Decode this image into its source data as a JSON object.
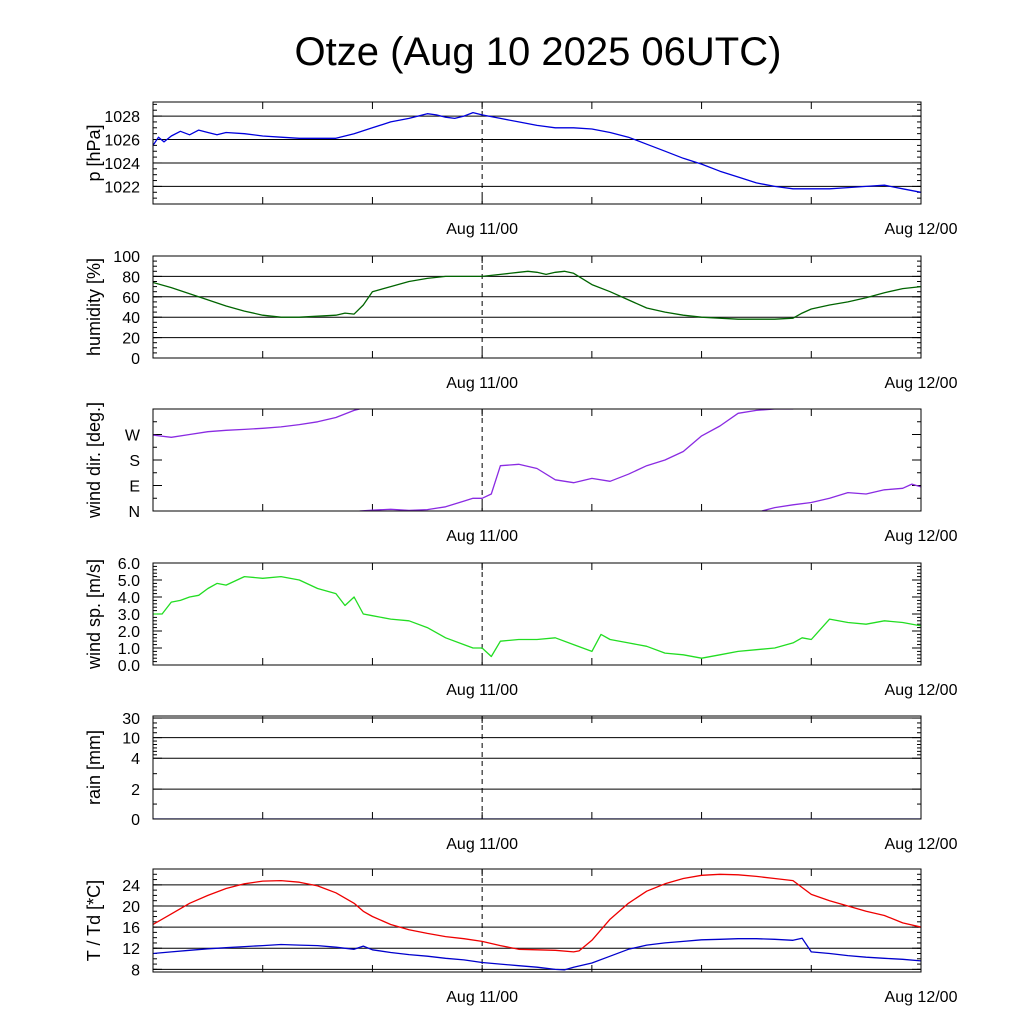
{
  "chart_data": {
    "title": "Otze (Aug 10 2025 06UTC)",
    "x_range_hours": [
      0,
      42
    ],
    "x_ticks": [
      {
        "hour": 18,
        "label": "Aug 11/00"
      },
      {
        "hour": 42,
        "label": "Aug 12/00"
      }
    ],
    "dashed_line_hour": 18,
    "panels": [
      {
        "id": "pressure",
        "type": "line",
        "ylabel": "p [hPa]",
        "ylim": [
          1020.5,
          1029.2
        ],
        "gridlines": [
          1022,
          1024,
          1026,
          1028
        ],
        "yticks": [
          {
            "value": 1022,
            "label": "1022"
          },
          {
            "value": 1024,
            "label": "1024"
          },
          {
            "value": 1026,
            "label": "1026"
          },
          {
            "value": 1028,
            "label": "1028"
          }
        ],
        "minor_step": 0.5,
        "series": [
          {
            "name": "pressure",
            "color": "#0000dd",
            "x": [
              0,
              0.3,
              0.6,
              1,
              1.5,
              2,
              2.5,
              3,
              3.5,
              4,
              5,
              6,
              7,
              8,
              9,
              10,
              11,
              12,
              13,
              14,
              15,
              15.5,
              16,
              16.5,
              17,
              17.5,
              18,
              19,
              20,
              21,
              22,
              23,
              24,
              25,
              26,
              27,
              28,
              29,
              30,
              31,
              32,
              33,
              34,
              35,
              36,
              37,
              38,
              39,
              40,
              41,
              42
            ],
            "y": [
              1025.5,
              1026.2,
              1025.8,
              1026.3,
              1026.7,
              1026.4,
              1026.8,
              1026.6,
              1026.4,
              1026.6,
              1026.5,
              1026.3,
              1026.2,
              1026.1,
              1026.1,
              1026.1,
              1026.5,
              1027.0,
              1027.5,
              1027.8,
              1028.2,
              1028.1,
              1027.9,
              1027.8,
              1028.0,
              1028.3,
              1028.1,
              1027.8,
              1027.5,
              1027.2,
              1027.0,
              1027.0,
              1026.9,
              1026.6,
              1026.2,
              1025.6,
              1025.0,
              1024.4,
              1023.9,
              1023.3,
              1022.8,
              1022.3,
              1022.0,
              1021.8,
              1021.8,
              1021.8,
              1021.9,
              1022.0,
              1022.1,
              1021.8,
              1021.5
            ]
          }
        ]
      },
      {
        "id": "humidity",
        "type": "line",
        "ylabel": "humidity [%]",
        "ylim": [
          0,
          100
        ],
        "gridlines": [
          20,
          40,
          60,
          80
        ],
        "yticks": [
          {
            "value": 0,
            "label": "0"
          },
          {
            "value": 20,
            "label": "20"
          },
          {
            "value": 40,
            "label": "40"
          },
          {
            "value": 60,
            "label": "60"
          },
          {
            "value": 80,
            "label": "80"
          },
          {
            "value": 100,
            "label": "100"
          }
        ],
        "minor_step": 5,
        "series": [
          {
            "name": "humidity",
            "color": "#006400",
            "x": [
              0,
              1,
              2,
              3,
              4,
              5,
              6,
              7,
              8,
              9,
              10,
              10.5,
              11,
              11.5,
              12,
              13,
              14,
              15,
              16,
              17,
              18,
              19,
              20,
              20.5,
              21,
              21.5,
              22,
              22.5,
              23,
              24,
              25,
              26,
              27,
              28,
              29,
              30,
              31,
              32,
              33,
              34,
              35,
              35.5,
              36,
              37,
              38,
              39,
              40,
              41,
              42
            ],
            "y": [
              74,
              69,
              63,
              57,
              51,
              46,
              42,
              40,
              40,
              41,
              42,
              44,
              43,
              52,
              65,
              70,
              75,
              78,
              80,
              80,
              80,
              82,
              84,
              85,
              84,
              82,
              84,
              85,
              83,
              72,
              65,
              57,
              49,
              45,
              42,
              40,
              39,
              38,
              38,
              38,
              39,
              44,
              48,
              52,
              55,
              59,
              64,
              68,
              70
            ]
          }
        ]
      },
      {
        "id": "wind_direction",
        "type": "line",
        "ylabel": "wind dir. [deg.]",
        "ylim": [
          0,
          360
        ],
        "gridlines": [],
        "yticks": [
          {
            "value": 0,
            "label": "N"
          },
          {
            "value": 90,
            "label": "E"
          },
          {
            "value": 180,
            "label": "S"
          },
          {
            "value": 270,
            "label": "W"
          }
        ],
        "minor_step": 45,
        "series": [
          {
            "name": "direction part 1",
            "color": "#8a2be2",
            "x": [
              0,
              1,
              2,
              3,
              4,
              5,
              6,
              7,
              8,
              9,
              10,
              11,
              11.3
            ],
            "y": [
              268,
              260,
              270,
              280,
              285,
              288,
              292,
              297,
              305,
              315,
              330,
              355,
              360
            ]
          },
          {
            "name": "direction part 2",
            "color": "#8a2be2",
            "x": [
              11.3,
              12,
              13,
              14,
              15,
              16,
              17,
              17.5,
              18,
              18.5,
              19,
              20,
              21,
              22,
              23,
              24,
              25,
              26,
              27,
              28,
              29,
              30,
              31,
              32,
              33,
              34,
              35,
              33.3
            ],
            "y": [
              0,
              3,
              6,
              2,
              5,
              15,
              35,
              45,
              45,
              60,
              160,
              165,
              150,
              110,
              100,
              115,
              105,
              130,
              160,
              180,
              210,
              265,
              300,
              345,
              355,
              360,
              360,
              360
            ]
          },
          {
            "name": "direction part 3",
            "color": "#8a2be2",
            "x": [
              33.3,
              34,
              35,
              36,
              37,
              38,
              39,
              40,
              41,
              41.5,
              42
            ],
            "y": [
              0,
              12,
              22,
              30,
              45,
              65,
              60,
              75,
              80,
              95,
              85
            ]
          }
        ]
      },
      {
        "id": "wind_speed",
        "type": "line",
        "ylabel": "wind sp. [m/s]",
        "ylim": [
          0,
          6
        ],
        "gridlines": [],
        "yticks": [
          {
            "value": 0,
            "label": "0.0"
          },
          {
            "value": 1,
            "label": "1.0"
          },
          {
            "value": 2,
            "label": "2.0"
          },
          {
            "value": 3,
            "label": "3.0"
          },
          {
            "value": 4,
            "label": "4.0"
          },
          {
            "value": 5,
            "label": "5.0"
          },
          {
            "value": 6,
            "label": "6.0"
          }
        ],
        "minor_step": 0.2,
        "series": [
          {
            "name": "wind speed",
            "color": "#22dd22",
            "x": [
              0,
              0.5,
              1,
              1.5,
              2,
              2.5,
              3,
              3.5,
              4,
              5,
              6,
              7,
              8,
              9,
              10,
              10.5,
              11,
              11.5,
              12,
              13,
              14,
              15,
              16,
              17,
              17.5,
              18,
              18.5,
              19,
              20,
              21,
              22,
              23,
              24,
              24.5,
              25,
              26,
              27,
              28,
              29,
              30,
              31,
              32,
              33,
              34,
              35,
              35.5,
              36,
              37,
              38,
              39,
              40,
              41,
              42
            ],
            "y": [
              3.0,
              3.0,
              3.7,
              3.8,
              4.0,
              4.1,
              4.5,
              4.8,
              4.7,
              5.2,
              5.1,
              5.2,
              5.0,
              4.5,
              4.2,
              3.5,
              4.0,
              3.0,
              2.9,
              2.7,
              2.6,
              2.2,
              1.6,
              1.2,
              1.0,
              1.0,
              0.5,
              1.4,
              1.5,
              1.5,
              1.6,
              1.2,
              0.8,
              1.8,
              1.5,
              1.3,
              1.1,
              0.7,
              0.6,
              0.4,
              0.6,
              0.8,
              0.9,
              1.0,
              1.3,
              1.6,
              1.5,
              2.7,
              2.5,
              2.4,
              2.6,
              2.5,
              2.3
            ]
          }
        ]
      },
      {
        "id": "rain",
        "type": "line",
        "ylabel": "rain [mm]",
        "ylim": [
          0,
          30
        ],
        "scale": "piecewise",
        "gridlines": [
          2,
          4,
          10,
          30
        ],
        "yticks": [
          {
            "value": 0,
            "label": "0"
          },
          {
            "value": 2,
            "label": "2"
          },
          {
            "value": 4,
            "label": "4"
          },
          {
            "value": 10,
            "label": "10"
          },
          {
            "value": 30,
            "label": "30"
          }
        ],
        "minor_values": [
          1,
          3,
          5,
          6,
          7,
          8,
          9,
          15,
          20,
          25
        ],
        "series": [
          {
            "name": "rain",
            "color": "#0000dd",
            "x": [
              0,
              42
            ],
            "y": [
              0,
              0
            ]
          }
        ]
      },
      {
        "id": "temperature",
        "type": "line",
        "ylabel": "T / Td [*C]",
        "ylim": [
          7.5,
          27
        ],
        "gridlines": [
          8,
          12,
          16,
          20,
          24
        ],
        "yticks": [
          {
            "value": 8,
            "label": "8"
          },
          {
            "value": 12,
            "label": "12"
          },
          {
            "value": 16,
            "label": "16"
          },
          {
            "value": 20,
            "label": "20"
          },
          {
            "value": 24,
            "label": "24"
          }
        ],
        "minor_step": 1,
        "series": [
          {
            "name": "T",
            "color": "#ee0000",
            "x": [
              0,
              1,
              2,
              3,
              4,
              5,
              6,
              7,
              8,
              9,
              10,
              11,
              11.5,
              12,
              13,
              14,
              15,
              16,
              17,
              18,
              19,
              20,
              21,
              22,
              23,
              23.3,
              24,
              25,
              26,
              27,
              28,
              29,
              30,
              31,
              32,
              33,
              34,
              35,
              35.5,
              36,
              37,
              38,
              39,
              40,
              41,
              42
            ],
            "y": [
              16.5,
              18.5,
              20.5,
              22.0,
              23.3,
              24.2,
              24.7,
              24.8,
              24.5,
              23.8,
              22.5,
              20.5,
              19.0,
              18.0,
              16.5,
              15.5,
              14.8,
              14.2,
              13.8,
              13.3,
              12.5,
              11.8,
              11.7,
              11.6,
              11.3,
              11.5,
              13.5,
              17.5,
              20.5,
              22.8,
              24.2,
              25.2,
              25.8,
              26.0,
              25.9,
              25.6,
              25.2,
              24.8,
              23.5,
              22.2,
              21.0,
              20.0,
              19.0,
              18.2,
              16.8,
              16.0
            ]
          },
          {
            "name": "Td",
            "color": "#0000cc",
            "x": [
              0,
              1,
              2,
              3,
              4,
              5,
              6,
              7,
              8,
              9,
              10,
              11,
              11.5,
              12,
              13,
              14,
              15,
              16,
              17,
              18,
              19,
              20,
              21,
              22,
              22.5,
              23,
              24,
              25,
              26,
              27,
              28,
              29,
              30,
              31,
              32,
              33,
              34,
              35,
              35.5,
              36,
              37,
              38,
              39,
              40,
              41,
              42
            ],
            "y": [
              11.0,
              11.3,
              11.6,
              11.9,
              12.1,
              12.3,
              12.5,
              12.7,
              12.6,
              12.5,
              12.2,
              11.8,
              12.4,
              11.7,
              11.2,
              10.8,
              10.5,
              10.1,
              9.8,
              9.3,
              9.0,
              8.7,
              8.4,
              8.0,
              7.9,
              8.4,
              9.2,
              10.5,
              11.8,
              12.6,
              13.0,
              13.3,
              13.6,
              13.7,
              13.8,
              13.8,
              13.7,
              13.5,
              13.9,
              11.3,
              11.0,
              10.6,
              10.3,
              10.1,
              9.9,
              9.6
            ]
          }
        ]
      }
    ]
  }
}
